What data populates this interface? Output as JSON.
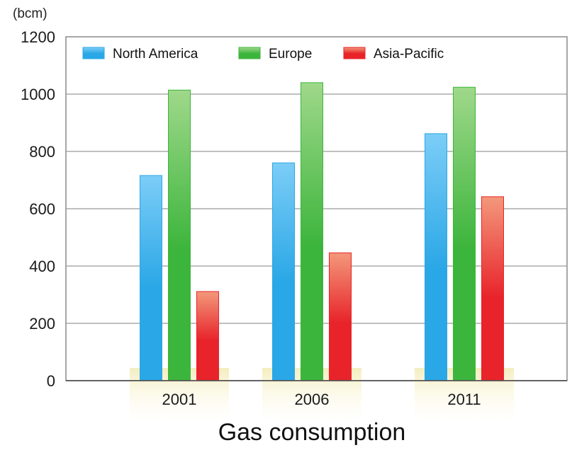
{
  "chart_data": {
    "type": "bar",
    "title": "Gas consumption",
    "unit_label": "(bcm)",
    "xlabel": "",
    "ylabel": "",
    "categories": [
      "2001",
      "2006",
      "2011"
    ],
    "series": [
      {
        "name": "North America",
        "values": [
          716,
          760,
          862
        ],
        "color": "#2aa7e6"
      },
      {
        "name": "Europe",
        "values": [
          1014,
          1040,
          1024
        ],
        "color": "#3cb53c"
      },
      {
        "name": "Asia-Pacific",
        "values": [
          311,
          446,
          642
        ],
        "color": "#e8232a"
      }
    ],
    "ylim": [
      0,
      1200
    ],
    "yticks": [
      "0",
      "200",
      "400",
      "600",
      "800",
      "1000",
      "1200"
    ],
    "grid": true,
    "legend_position": "top"
  }
}
